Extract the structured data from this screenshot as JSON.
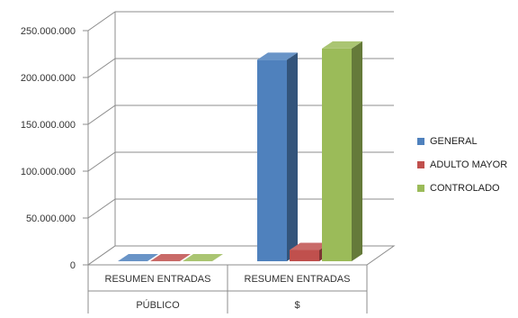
{
  "chart_data": {
    "type": "bar",
    "subtype": "3d-clustered-column",
    "categories": [
      {
        "line1": "RESUMEN ENTRADAS",
        "line2": "PÚBLICO"
      },
      {
        "line1": "RESUMEN ENTRADAS",
        "line2": "$"
      }
    ],
    "series": [
      {
        "name": "GENERAL",
        "color": "#4f81bd",
        "values": [
          1200,
          215000000
        ]
      },
      {
        "name": "ADULTO MAYOR",
        "color": "#c0504d",
        "values": [
          300,
          12000000
        ]
      },
      {
        "name": "CONTROLADO",
        "color": "#9bbb59",
        "values": [
          1300,
          227000000
        ]
      }
    ],
    "yticks": [
      "0",
      "50.000.000",
      "100.000.000",
      "150.000.000",
      "200.000.000",
      "250.000.000"
    ],
    "ylim": [
      0,
      250000000
    ],
    "grid": true,
    "legend_position": "right"
  }
}
